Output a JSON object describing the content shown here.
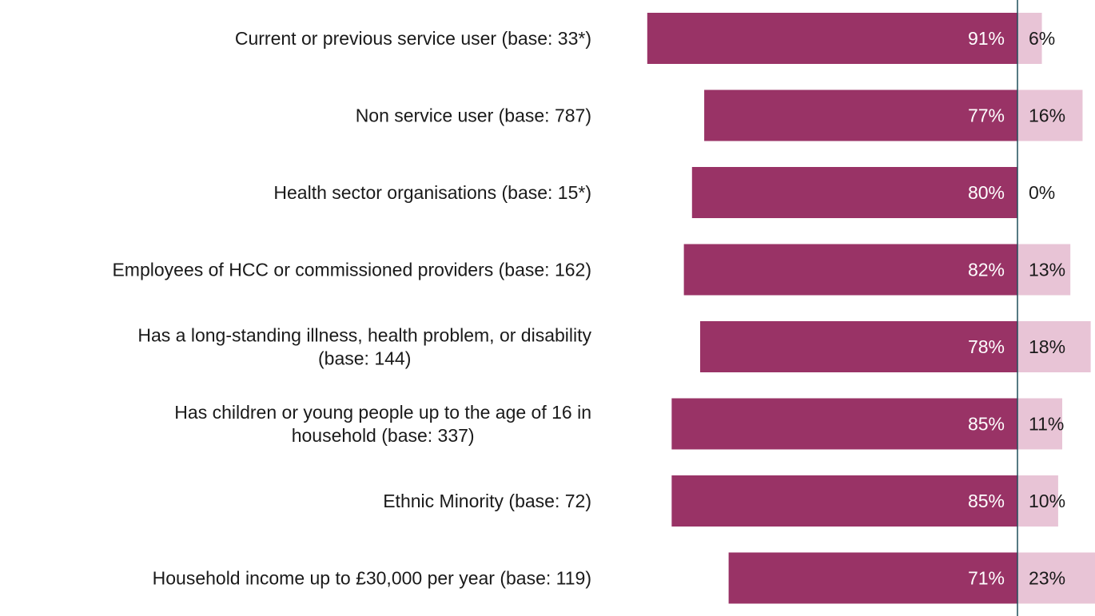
{
  "chart_data": {
    "type": "bar",
    "orientation": "horizontal-diverging",
    "categories": [
      [
        "Current or previous service user (base: 33*)"
      ],
      [
        "Non service user (base: 787)"
      ],
      [
        "Health sector organisations (base: 15*)"
      ],
      [
        "Employees of HCC or commissioned providers (base: 162)"
      ],
      [
        "Has a long-standing illness, health problem, or disability",
        "(base: 144)"
      ],
      [
        "Has children or young people up to the age of 16 in",
        "household (base: 337)"
      ],
      [
        "Ethnic Minority (base: 72)"
      ],
      [
        "Household income up to £30,000 per year (base: 119)"
      ]
    ],
    "series": [
      {
        "values": [
          91,
          77,
          80,
          82,
          78,
          85,
          85,
          71
        ],
        "labels": [
          "91%",
          "77%",
          "80%",
          "82%",
          "78%",
          "85%",
          "85%",
          "71%"
        ],
        "color": "#993366",
        "side": "left"
      },
      {
        "values": [
          6,
          16,
          0,
          13,
          18,
          11,
          10,
          23
        ],
        "labels": [
          "6%",
          "16%",
          "0%",
          "13%",
          "18%",
          "11%",
          "10%",
          "23%"
        ],
        "color": "#e8c4d6",
        "side": "right"
      }
    ],
    "axis_line_color": "#1f4e5a",
    "legend": "none",
    "grid": false
  }
}
